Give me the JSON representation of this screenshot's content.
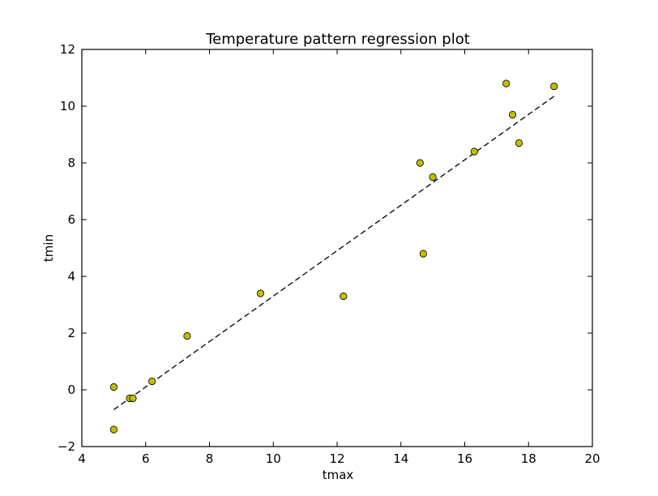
{
  "chart_data": {
    "type": "scatter",
    "title": "Temperature pattern regression plot",
    "xlabel": "tmax",
    "ylabel": "tmin",
    "xlim": [
      4,
      20
    ],
    "ylim": [
      -2,
      12
    ],
    "xticks": [
      4,
      6,
      8,
      10,
      12,
      14,
      16,
      18,
      20
    ],
    "yticks": [
      -2,
      0,
      2,
      4,
      6,
      8,
      10,
      12
    ],
    "xtick_labels": [
      "4",
      "6",
      "8",
      "10",
      "12",
      "14",
      "16",
      "18",
      "20"
    ],
    "ytick_labels": [
      "−2",
      "0",
      "2",
      "4",
      "6",
      "8",
      "10",
      "12"
    ],
    "grid": false,
    "series": [
      {
        "type": "scatter",
        "marker_color": "#bfbf00",
        "points": [
          {
            "x": 5.0,
            "y": 0.1
          },
          {
            "x": 5.0,
            "y": -1.4
          },
          {
            "x": 5.5,
            "y": -0.3
          },
          {
            "x": 5.6,
            "y": -0.3
          },
          {
            "x": 6.2,
            "y": 0.3
          },
          {
            "x": 7.3,
            "y": 1.9
          },
          {
            "x": 9.6,
            "y": 3.4
          },
          {
            "x": 12.2,
            "y": 3.3
          },
          {
            "x": 14.6,
            "y": 8.0
          },
          {
            "x": 14.7,
            "y": 4.8
          },
          {
            "x": 15.0,
            "y": 7.5
          },
          {
            "x": 16.3,
            "y": 8.4
          },
          {
            "x": 17.3,
            "y": 10.8
          },
          {
            "x": 17.5,
            "y": 9.7
          },
          {
            "x": 17.7,
            "y": 8.7
          },
          {
            "x": 18.8,
            "y": 10.7
          }
        ]
      },
      {
        "type": "line",
        "style": "dashed",
        "line_color": "#000000",
        "points": [
          {
            "x": 5.0,
            "y": -0.7
          },
          {
            "x": 18.8,
            "y": 10.35
          }
        ]
      }
    ]
  }
}
